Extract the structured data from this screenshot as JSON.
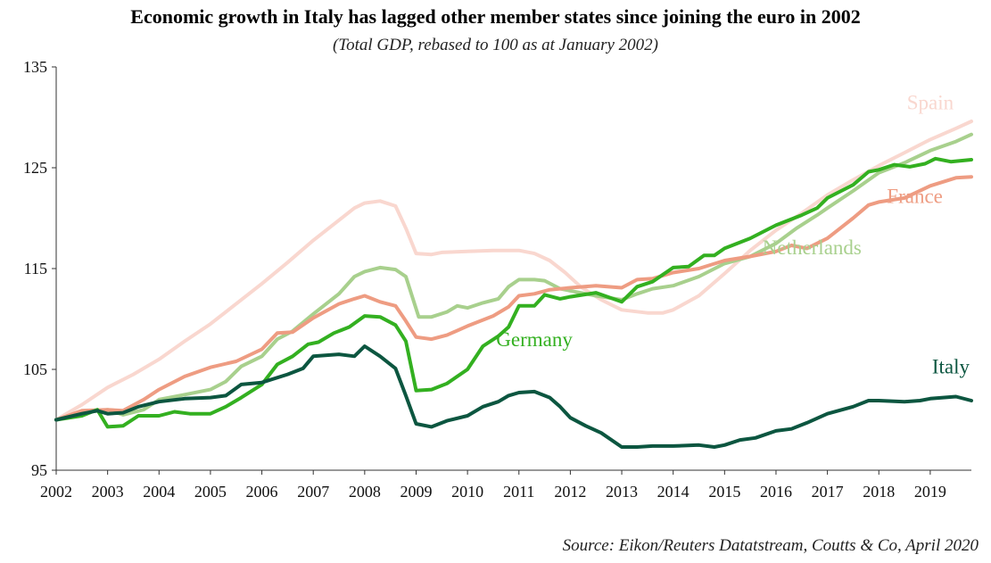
{
  "chart_data": {
    "type": "line",
    "title": "Economic growth in Italy has lagged other member states since joining the euro  in 2002",
    "subtitle": "(Total GDP, rebased to 100 as at January 2002)",
    "source": "Source: Eikon/Reuters Datatstream, Coutts & Co, April 2020",
    "xlabel": "",
    "ylabel": "",
    "xlim": [
      2002,
      2019.8
    ],
    "ylim": [
      95,
      135
    ],
    "xticks": [
      "2002",
      "2003",
      "2004",
      "2005",
      "2006",
      "2007",
      "2008",
      "2009",
      "2010",
      "2011",
      "2012",
      "2013",
      "2014",
      "2015",
      "2016",
      "2017",
      "2018",
      "2019"
    ],
    "yticks": [
      "95",
      "105",
      "115",
      "125",
      "135"
    ],
    "grid": false,
    "legend": "inline labels",
    "series": [
      {
        "name": "Spain",
        "color": "#f9d7cf",
        "points": [
          [
            2002,
            100
          ],
          [
            2002.5,
            101.5
          ],
          [
            2003,
            103.2
          ],
          [
            2003.5,
            104.5
          ],
          [
            2004,
            106
          ],
          [
            2004.5,
            107.8
          ],
          [
            2005,
            109.5
          ],
          [
            2005.5,
            111.5
          ],
          [
            2006,
            113.5
          ],
          [
            2006.5,
            115.6
          ],
          [
            2007,
            117.8
          ],
          [
            2007.5,
            119.8
          ],
          [
            2007.8,
            121
          ],
          [
            2008,
            121.5
          ],
          [
            2008.3,
            121.7
          ],
          [
            2008.6,
            121.2
          ],
          [
            2008.8,
            119
          ],
          [
            2009,
            116.5
          ],
          [
            2009.3,
            116.4
          ],
          [
            2009.5,
            116.6
          ],
          [
            2010,
            116.7
          ],
          [
            2010.5,
            116.8
          ],
          [
            2011,
            116.8
          ],
          [
            2011.3,
            116.5
          ],
          [
            2011.6,
            115.8
          ],
          [
            2011.9,
            114.6
          ],
          [
            2012.2,
            113.2
          ],
          [
            2012.6,
            111.9
          ],
          [
            2013,
            110.9
          ],
          [
            2013.5,
            110.6
          ],
          [
            2013.8,
            110.6
          ],
          [
            2014,
            110.9
          ],
          [
            2014.5,
            112.3
          ],
          [
            2015,
            114.5
          ],
          [
            2015.5,
            116.8
          ],
          [
            2016,
            118.8
          ],
          [
            2016.5,
            120.5
          ],
          [
            2017,
            122.3
          ],
          [
            2017.5,
            123.8
          ],
          [
            2018,
            125.2
          ],
          [
            2018.5,
            126.5
          ],
          [
            2019,
            127.8
          ],
          [
            2019.5,
            128.9
          ],
          [
            2019.8,
            129.6
          ]
        ]
      },
      {
        "name": "Netherlands",
        "color": "#a8d08d",
        "points": [
          [
            2002,
            100
          ],
          [
            2002.5,
            100.7
          ],
          [
            2003,
            101
          ],
          [
            2003.3,
            100.5
          ],
          [
            2003.7,
            101
          ],
          [
            2004,
            102
          ],
          [
            2004.5,
            102.5
          ],
          [
            2005,
            103
          ],
          [
            2005.3,
            103.8
          ],
          [
            2005.6,
            105.3
          ],
          [
            2006,
            106.3
          ],
          [
            2006.3,
            108
          ],
          [
            2006.6,
            108.8
          ],
          [
            2007,
            110.5
          ],
          [
            2007.5,
            112.5
          ],
          [
            2007.8,
            114.2
          ],
          [
            2008,
            114.7
          ],
          [
            2008.3,
            115.1
          ],
          [
            2008.6,
            114.9
          ],
          [
            2008.8,
            114.2
          ],
          [
            2009.05,
            110.2
          ],
          [
            2009.3,
            110.2
          ],
          [
            2009.6,
            110.7
          ],
          [
            2009.8,
            111.3
          ],
          [
            2010,
            111.1
          ],
          [
            2010.3,
            111.6
          ],
          [
            2010.6,
            112
          ],
          [
            2010.8,
            113.2
          ],
          [
            2011,
            113.9
          ],
          [
            2011.3,
            113.9
          ],
          [
            2011.5,
            113.8
          ],
          [
            2011.8,
            113
          ],
          [
            2012,
            112.8
          ],
          [
            2012.5,
            112.3
          ],
          [
            2013,
            111.9
          ],
          [
            2013.3,
            112.5
          ],
          [
            2013.6,
            113
          ],
          [
            2014,
            113.3
          ],
          [
            2014.5,
            114.2
          ],
          [
            2015,
            115.5
          ],
          [
            2015.5,
            116.2
          ],
          [
            2016,
            117.5
          ],
          [
            2016.4,
            119
          ],
          [
            2016.8,
            120.3
          ],
          [
            2017,
            121
          ],
          [
            2017.5,
            122.7
          ],
          [
            2018,
            124.5
          ],
          [
            2018.5,
            125.5
          ],
          [
            2019,
            126.7
          ],
          [
            2019.5,
            127.6
          ],
          [
            2019.8,
            128.3
          ]
        ]
      },
      {
        "name": "France",
        "color": "#ee9c82",
        "points": [
          [
            2002,
            100
          ],
          [
            2002.5,
            100.9
          ],
          [
            2003,
            101
          ],
          [
            2003.3,
            100.9
          ],
          [
            2003.7,
            102
          ],
          [
            2004,
            103
          ],
          [
            2004.5,
            104.3
          ],
          [
            2005,
            105.2
          ],
          [
            2005.5,
            105.8
          ],
          [
            2006,
            107
          ],
          [
            2006.3,
            108.6
          ],
          [
            2006.6,
            108.7
          ],
          [
            2007,
            110.1
          ],
          [
            2007.5,
            111.5
          ],
          [
            2007.8,
            112
          ],
          [
            2008,
            112.3
          ],
          [
            2008.3,
            111.7
          ],
          [
            2008.6,
            111.3
          ],
          [
            2008.8,
            109.8
          ],
          [
            2009,
            108.2
          ],
          [
            2009.3,
            108
          ],
          [
            2009.6,
            108.4
          ],
          [
            2010,
            109.3
          ],
          [
            2010.5,
            110.3
          ],
          [
            2010.8,
            111.2
          ],
          [
            2011,
            112.3
          ],
          [
            2011.3,
            112.5
          ],
          [
            2011.6,
            112.9
          ],
          [
            2012,
            113.1
          ],
          [
            2012.5,
            113.3
          ],
          [
            2013,
            113.1
          ],
          [
            2013.3,
            113.9
          ],
          [
            2013.6,
            114
          ],
          [
            2014,
            114.6
          ],
          [
            2014.5,
            115
          ],
          [
            2015,
            115.8
          ],
          [
            2015.5,
            116.2
          ],
          [
            2016,
            116.7
          ],
          [
            2016.3,
            117.3
          ],
          [
            2016.6,
            117
          ],
          [
            2017,
            118
          ],
          [
            2017.5,
            120
          ],
          [
            2017.8,
            121.3
          ],
          [
            2018,
            121.6
          ],
          [
            2018.5,
            122
          ],
          [
            2019,
            123.2
          ],
          [
            2019.5,
            124
          ],
          [
            2019.8,
            124.1
          ]
        ]
      },
      {
        "name": "Germany",
        "color": "#33b020",
        "points": [
          [
            2002,
            100
          ],
          [
            2002.5,
            100.4
          ],
          [
            2002.8,
            101
          ],
          [
            2003,
            99.3
          ],
          [
            2003.3,
            99.4
          ],
          [
            2003.6,
            100.4
          ],
          [
            2004,
            100.4
          ],
          [
            2004.3,
            100.8
          ],
          [
            2004.6,
            100.6
          ],
          [
            2005,
            100.6
          ],
          [
            2005.3,
            101.3
          ],
          [
            2005.6,
            102.2
          ],
          [
            2006,
            103.5
          ],
          [
            2006.3,
            105.5
          ],
          [
            2006.6,
            106.3
          ],
          [
            2006.9,
            107.5
          ],
          [
            2007.1,
            107.7
          ],
          [
            2007.4,
            108.6
          ],
          [
            2007.7,
            109.2
          ],
          [
            2008,
            110.3
          ],
          [
            2008.3,
            110.2
          ],
          [
            2008.6,
            109.4
          ],
          [
            2008.8,
            107.8
          ],
          [
            2009,
            102.9
          ],
          [
            2009.3,
            103
          ],
          [
            2009.6,
            103.6
          ],
          [
            2010,
            105
          ],
          [
            2010.3,
            107.3
          ],
          [
            2010.6,
            108.3
          ],
          [
            2010.8,
            109.2
          ],
          [
            2011,
            111.3
          ],
          [
            2011.3,
            111.3
          ],
          [
            2011.5,
            112.4
          ],
          [
            2011.8,
            112
          ],
          [
            2012,
            112.2
          ],
          [
            2012.5,
            112.6
          ],
          [
            2013,
            111.7
          ],
          [
            2013.3,
            113.2
          ],
          [
            2013.6,
            113.7
          ],
          [
            2014,
            115.1
          ],
          [
            2014.3,
            115.2
          ],
          [
            2014.6,
            116.3
          ],
          [
            2014.8,
            116.3
          ],
          [
            2015,
            117
          ],
          [
            2015.5,
            118
          ],
          [
            2016,
            119.3
          ],
          [
            2016.5,
            120.3
          ],
          [
            2016.8,
            121
          ],
          [
            2017,
            122
          ],
          [
            2017.5,
            123.3
          ],
          [
            2017.8,
            124.6
          ],
          [
            2018,
            124.8
          ],
          [
            2018.3,
            125.3
          ],
          [
            2018.6,
            125.1
          ],
          [
            2018.9,
            125.4
          ],
          [
            2019.1,
            125.9
          ],
          [
            2019.4,
            125.6
          ],
          [
            2019.8,
            125.8
          ]
        ]
      },
      {
        "name": "Italy",
        "color": "#0c5640",
        "points": [
          [
            2002,
            100
          ],
          [
            2002.5,
            100.6
          ],
          [
            2002.8,
            100.9
          ],
          [
            2003,
            100.6
          ],
          [
            2003.3,
            100.7
          ],
          [
            2003.6,
            101.3
          ],
          [
            2004,
            101.8
          ],
          [
            2004.5,
            102.1
          ],
          [
            2005,
            102.2
          ],
          [
            2005.3,
            102.4
          ],
          [
            2005.6,
            103.5
          ],
          [
            2006,
            103.7
          ],
          [
            2006.5,
            104.5
          ],
          [
            2006.8,
            105.1
          ],
          [
            2007,
            106.3
          ],
          [
            2007.5,
            106.5
          ],
          [
            2007.8,
            106.3
          ],
          [
            2008,
            107.3
          ],
          [
            2008.3,
            106.3
          ],
          [
            2008.6,
            105.1
          ],
          [
            2008.8,
            102.4
          ],
          [
            2009,
            99.6
          ],
          [
            2009.3,
            99.3
          ],
          [
            2009.6,
            99.9
          ],
          [
            2010,
            100.4
          ],
          [
            2010.3,
            101.3
          ],
          [
            2010.6,
            101.8
          ],
          [
            2010.8,
            102.4
          ],
          [
            2011,
            102.7
          ],
          [
            2011.3,
            102.8
          ],
          [
            2011.6,
            102.2
          ],
          [
            2011.8,
            101.3
          ],
          [
            2012,
            100.2
          ],
          [
            2012.3,
            99.4
          ],
          [
            2012.6,
            98.7
          ],
          [
            2013,
            97.3
          ],
          [
            2013.3,
            97.3
          ],
          [
            2013.6,
            97.4
          ],
          [
            2014,
            97.4
          ],
          [
            2014.5,
            97.5
          ],
          [
            2014.8,
            97.3
          ],
          [
            2015,
            97.5
          ],
          [
            2015.3,
            98
          ],
          [
            2015.6,
            98.2
          ],
          [
            2016,
            98.9
          ],
          [
            2016.3,
            99.1
          ],
          [
            2016.6,
            99.7
          ],
          [
            2017,
            100.6
          ],
          [
            2017.5,
            101.3
          ],
          [
            2017.8,
            101.9
          ],
          [
            2018,
            101.9
          ],
          [
            2018.5,
            101.8
          ],
          [
            2018.8,
            101.9
          ],
          [
            2019,
            102.1
          ],
          [
            2019.5,
            102.3
          ],
          [
            2019.8,
            101.9
          ]
        ]
      }
    ],
    "labels": [
      {
        "text": "Spain",
        "color": "#f9d7cf",
        "x": 2019.0,
        "y": 130.8
      },
      {
        "text": "France",
        "color": "#ee9c82",
        "x": 2018.7,
        "y": 121.5
      },
      {
        "text": "Netherlands",
        "color": "#a8d08d",
        "x": 2016.7,
        "y": 116.4
      },
      {
        "text": "Germany",
        "color": "#33b020",
        "x": 2011.3,
        "y": 107.3
      },
      {
        "text": "Italy",
        "color": "#0c5640",
        "x": 2019.4,
        "y": 104.6
      }
    ]
  }
}
